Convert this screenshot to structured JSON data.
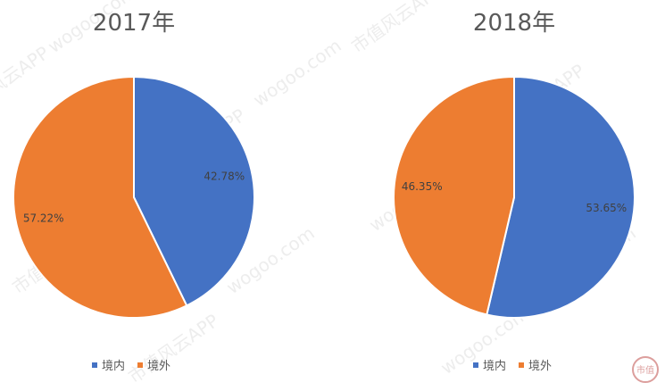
{
  "chart_data": [
    {
      "type": "pie",
      "title": "2017年",
      "series": [
        {
          "name": "境内",
          "value": 42.78,
          "label": "42.78%",
          "color": "#4472c4"
        },
        {
          "name": "境外",
          "value": 57.22,
          "label": "57.22%",
          "color": "#ed7d31"
        }
      ],
      "legend_placement": "bottom"
    },
    {
      "type": "pie",
      "title": "2018年",
      "series": [
        {
          "name": "境内",
          "value": 53.65,
          "label": "53.65%",
          "color": "#4472c4"
        },
        {
          "name": "境外",
          "value": 46.35,
          "label": "46.35%",
          "color": "#ed7d31"
        }
      ],
      "legend_placement": "bottom"
    }
  ],
  "watermark": {
    "text_site": "wogoo.com",
    "text_app": "市值风云APP",
    "logo_text": "市值"
  }
}
